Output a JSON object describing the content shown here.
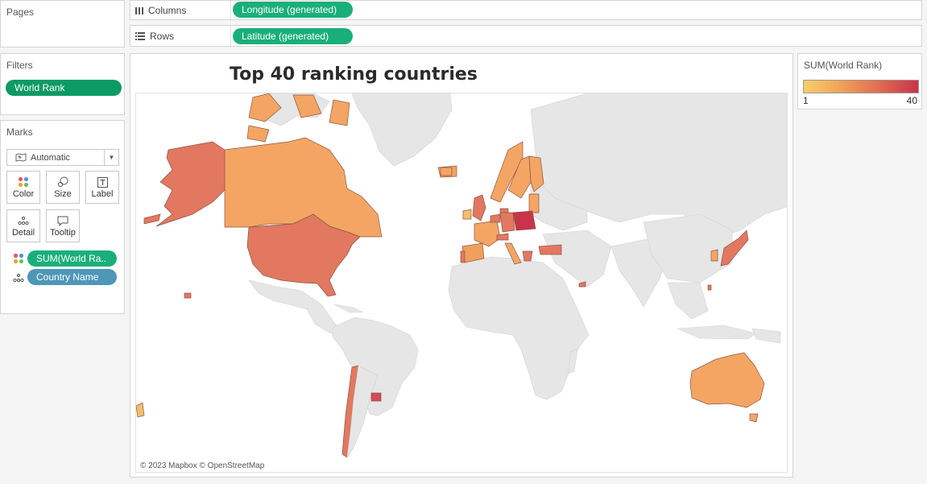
{
  "pages": {
    "title": "Pages"
  },
  "columns": {
    "label": "Columns",
    "pill": "Longitude (generated)"
  },
  "rows": {
    "label": "Rows",
    "pill": "Latitude (generated)"
  },
  "filters": {
    "title": "Filters",
    "items": [
      "World Rank"
    ]
  },
  "marks": {
    "title": "Marks",
    "type": "Automatic",
    "buttons": [
      "Color",
      "Size",
      "Label",
      "Detail",
      "Tooltip"
    ],
    "fields": [
      {
        "icon": "color-dots-icon",
        "label": "SUM(World Ra.."
      },
      {
        "icon": "detail-dots-icon",
        "label": "Country Name"
      }
    ]
  },
  "viz": {
    "title": "Top 40 ranking countries",
    "attribution": "© 2023 Mapbox © OpenStreetMap"
  },
  "legend": {
    "title": "SUM(World Rank)",
    "min": "1",
    "max": "40",
    "colors": [
      "#f6cf6a",
      "#c8344a"
    ]
  }
}
